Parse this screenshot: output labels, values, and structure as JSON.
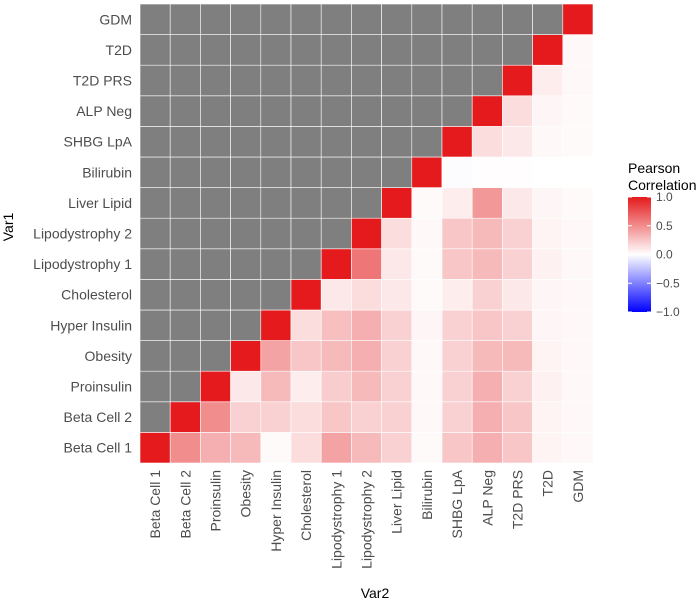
{
  "chart_data": {
    "type": "heatmap",
    "title": "",
    "xlabel": "Var2",
    "ylabel": "Var1",
    "variables": [
      "Beta Cell 1",
      "Beta Cell 2",
      "Proinsulin",
      "Obesity",
      "Hyper Insulin",
      "Cholesterol",
      "Lipodystrophy 1",
      "Lipodystrophy 2",
      "Liver Lipid",
      "Bilirubin",
      "SHBG LpA",
      "ALP Neg",
      "T2D PRS",
      "T2D",
      "GDM"
    ],
    "x_categories": [
      "Beta Cell 1",
      "Beta Cell 2",
      "Proinsulin",
      "Obesity",
      "Hyper Insulin",
      "Cholesterol",
      "Lipodystrophy 1",
      "Lipodystrophy 2",
      "Liver Lipid",
      "Bilirubin",
      "SHBG LpA",
      "ALP Neg",
      "T2D PRS",
      "T2D",
      "GDM"
    ],
    "y_categories": [
      "Beta Cell 1",
      "Beta Cell 2",
      "Proinsulin",
      "Obesity",
      "Hyper Insulin",
      "Cholesterol",
      "Lipodystrophy 1",
      "Lipodystrophy 2",
      "Liver Lipid",
      "Bilirubin",
      "SHBG LpA",
      "ALP Neg",
      "T2D PRS",
      "T2D",
      "GDM"
    ],
    "lower_triangle_masked": true,
    "correlations": [
      [
        1.0,
        0.5,
        0.35,
        0.3,
        0.02,
        0.15,
        0.4,
        0.3,
        0.2,
        0.02,
        0.25,
        0.35,
        0.25,
        0.05,
        0.03
      ],
      [
        null,
        1.0,
        0.5,
        0.2,
        0.2,
        0.15,
        0.25,
        0.2,
        0.2,
        0.03,
        0.2,
        0.35,
        0.25,
        0.05,
        0.03
      ],
      [
        null,
        null,
        1.0,
        0.1,
        0.3,
        0.08,
        0.22,
        0.3,
        0.2,
        0.03,
        0.2,
        0.35,
        0.2,
        0.06,
        0.03
      ],
      [
        null,
        null,
        null,
        1.0,
        0.4,
        0.25,
        0.3,
        0.35,
        0.2,
        0.03,
        0.2,
        0.3,
        0.3,
        0.05,
        0.03
      ],
      [
        null,
        null,
        null,
        null,
        1.0,
        0.15,
        0.28,
        0.35,
        0.2,
        0.04,
        0.2,
        0.25,
        0.2,
        0.04,
        0.03
      ],
      [
        null,
        null,
        null,
        null,
        null,
        1.0,
        0.1,
        0.15,
        0.1,
        0.02,
        0.08,
        0.2,
        0.1,
        0.04,
        0.03
      ],
      [
        null,
        null,
        null,
        null,
        null,
        null,
        1.0,
        0.6,
        0.1,
        0.02,
        0.25,
        0.3,
        0.2,
        0.06,
        0.03
      ],
      [
        null,
        null,
        null,
        null,
        null,
        null,
        null,
        1.0,
        0.15,
        0.03,
        0.25,
        0.3,
        0.2,
        0.05,
        0.03
      ],
      [
        null,
        null,
        null,
        null,
        null,
        null,
        null,
        null,
        1.0,
        0.02,
        0.08,
        0.45,
        0.1,
        0.04,
        0.02
      ],
      [
        null,
        null,
        null,
        null,
        null,
        null,
        null,
        null,
        null,
        1.0,
        -0.01,
        0.01,
        0.01,
        0.0,
        0.0
      ],
      [
        null,
        null,
        null,
        null,
        null,
        null,
        null,
        null,
        null,
        null,
        1.0,
        0.15,
        0.1,
        0.03,
        0.02
      ],
      [
        null,
        null,
        null,
        null,
        null,
        null,
        null,
        null,
        null,
        null,
        null,
        1.0,
        0.15,
        0.04,
        0.02
      ],
      [
        null,
        null,
        null,
        null,
        null,
        null,
        null,
        null,
        null,
        null,
        null,
        null,
        1.0,
        0.08,
        0.03
      ],
      [
        null,
        null,
        null,
        null,
        null,
        null,
        null,
        null,
        null,
        null,
        null,
        null,
        null,
        1.0,
        0.03
      ],
      [
        null,
        null,
        null,
        null,
        null,
        null,
        null,
        null,
        null,
        null,
        null,
        null,
        null,
        null,
        1.0
      ]
    ],
    "legend": {
      "title_lines": [
        "Pearson",
        "Correlation"
      ],
      "ticks": [
        {
          "value": 1.0,
          "label": "1.0"
        },
        {
          "value": 0.5,
          "label": "0.5"
        },
        {
          "value": 0.0,
          "label": "0.0"
        },
        {
          "value": -0.5,
          "label": "−0.5"
        },
        {
          "value": -1.0,
          "label": "−1.0"
        }
      ],
      "range": [
        -1.0,
        1.0
      ],
      "position": "right"
    },
    "colors": {
      "high": "#e41a1c",
      "mid": "#ffffff",
      "low": "#0000ff",
      "masked": "#7f7f7f",
      "grid": "#ffffff"
    }
  }
}
